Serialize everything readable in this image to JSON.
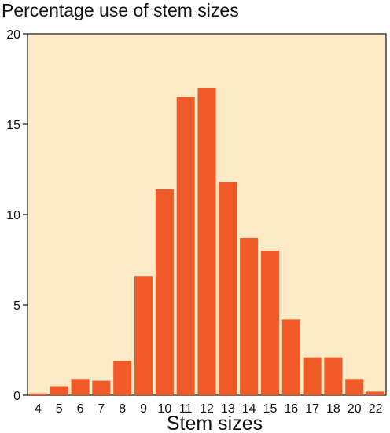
{
  "chart_data": {
    "type": "bar",
    "title": "Percentage use of stem sizes",
    "xlabel": "Stem sizes",
    "ylabel": "",
    "ylim": [
      0,
      20
    ],
    "yticks": [
      0,
      5,
      10,
      15,
      20
    ],
    "categories": [
      "4",
      "5",
      "6",
      "7",
      "8",
      "9",
      "10",
      "11",
      "12",
      "13",
      "14",
      "15",
      "16",
      "17",
      "18",
      "20",
      "22"
    ],
    "values": [
      0.1,
      0.5,
      0.9,
      0.8,
      1.9,
      6.6,
      11.4,
      16.5,
      17.0,
      11.8,
      8.7,
      8.0,
      4.2,
      2.1,
      2.1,
      0.9,
      0.2
    ],
    "grid": false,
    "legend": "none",
    "colors": {
      "bar": "#f05a28",
      "plot_bg": "#fdebc8",
      "axis": "#111111"
    }
  }
}
